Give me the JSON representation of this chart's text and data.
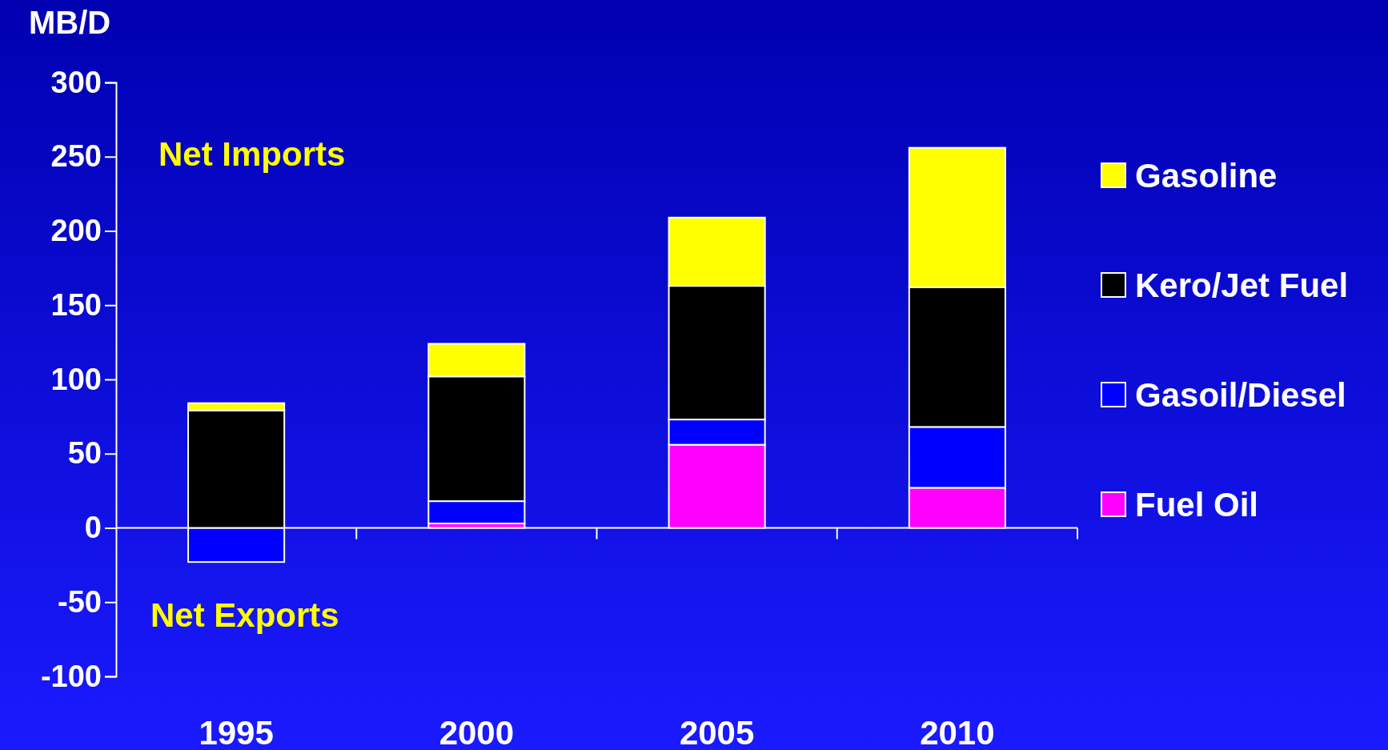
{
  "chart_data": {
    "type": "bar",
    "stacked": true,
    "ylabel": "MB/D",
    "categories": [
      "1995",
      "2000",
      "2005",
      "2010"
    ],
    "series": [
      {
        "name": "Fuel Oil",
        "color": "#ff00ff",
        "values": [
          0,
          3,
          56,
          27
        ]
      },
      {
        "name": "Gasoil/Diesel",
        "color": "#0000ff",
        "values": [
          -23,
          15,
          17,
          41
        ]
      },
      {
        "name": "Kero/Jet Fuel",
        "color": "#000000",
        "values": [
          79,
          84,
          90,
          94
        ]
      },
      {
        "name": "Gasoline",
        "color": "#ffff00",
        "values": [
          5,
          22,
          46,
          94
        ]
      }
    ],
    "ylim": [
      -100,
      300
    ],
    "yticks": [
      -100,
      -50,
      0,
      50,
      100,
      150,
      200,
      250,
      300
    ],
    "legend": "right",
    "annotations": [
      "Net Imports",
      "Net Exports"
    ]
  }
}
